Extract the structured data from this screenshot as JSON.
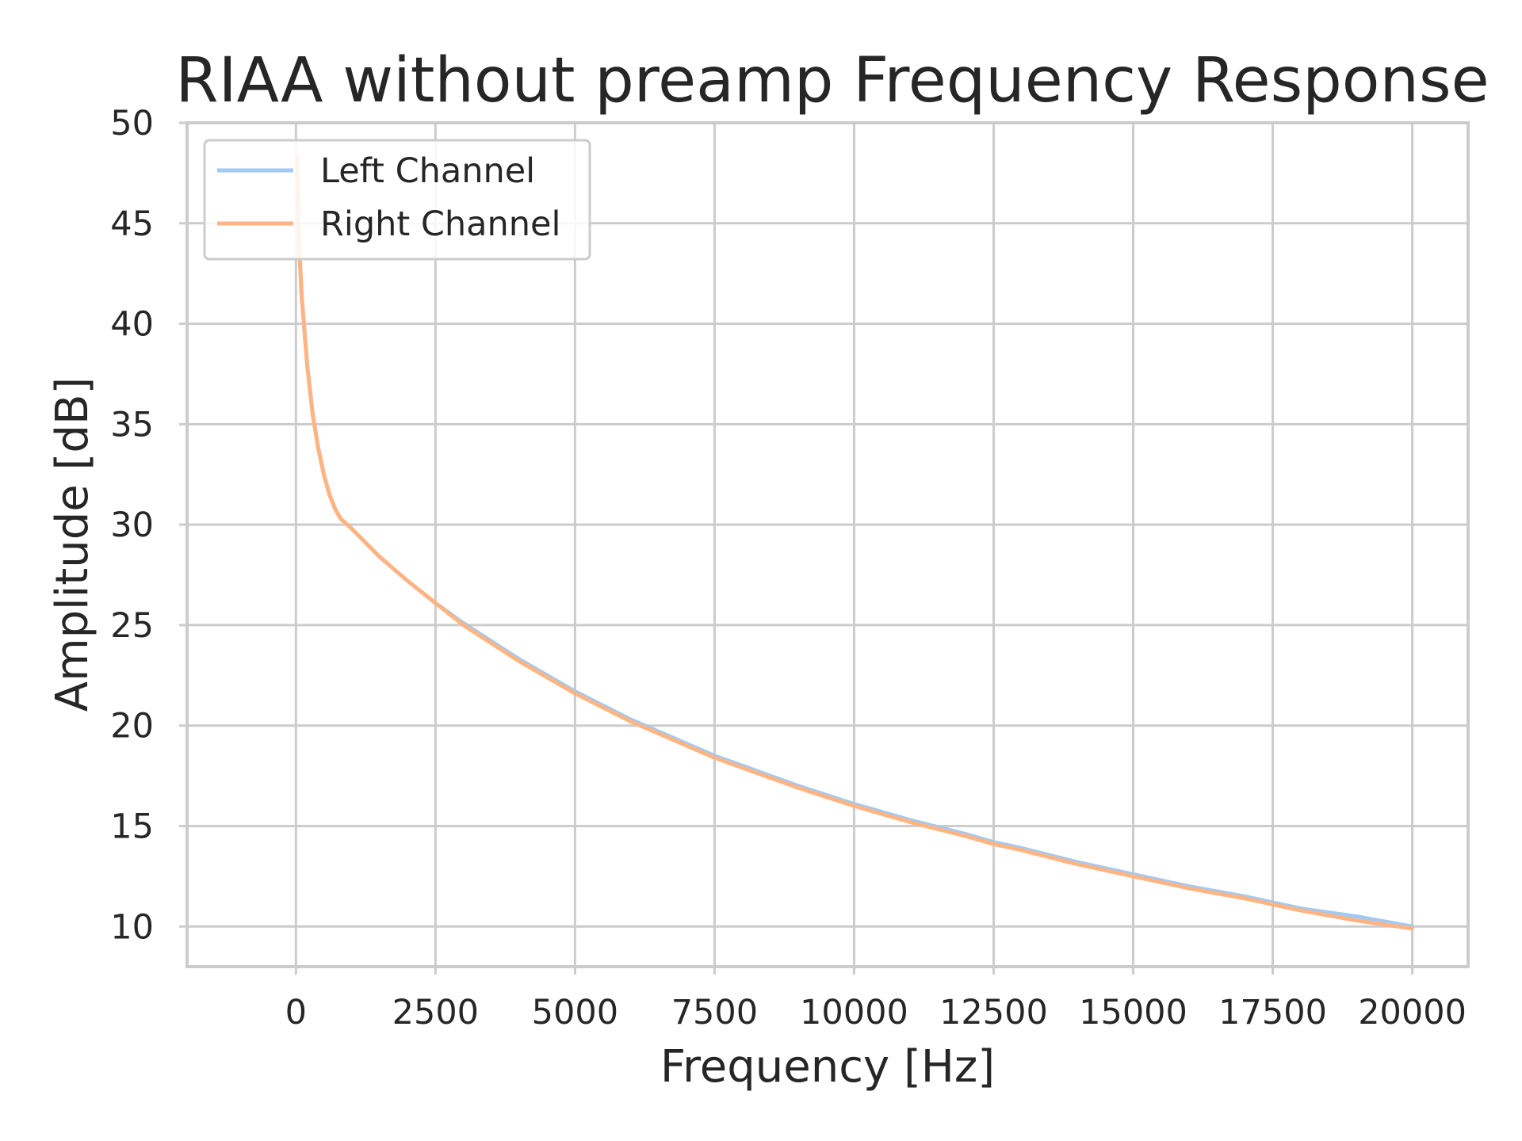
{
  "chart_data": {
    "type": "line",
    "title": "RIAA without preamp Frequency Response",
    "xlabel": "Frequency [Hz]",
    "ylabel": "Amplitude [dB]",
    "xlim": [
      -1950,
      21000
    ],
    "ylim": [
      8,
      50
    ],
    "xticks": [
      0,
      2500,
      5000,
      7500,
      10000,
      12500,
      15000,
      17500,
      20000
    ],
    "yticks": [
      10,
      15,
      20,
      25,
      30,
      35,
      40,
      45,
      50
    ],
    "grid": true,
    "legend_position": "top-left",
    "series": [
      {
        "name": "Left Channel",
        "color": "#a1c9f4",
        "x": [
          20,
          50,
          100,
          200,
          300,
          400,
          500,
          600,
          700,
          800,
          1000,
          1500,
          2000,
          2500,
          3000,
          4000,
          5000,
          6000,
          7000,
          7500,
          8000,
          9000,
          10000,
          11000,
          12000,
          12500,
          13000,
          14000,
          15000,
          16000,
          17000,
          17500,
          18000,
          19000,
          20000
        ],
        "y": [
          48.3,
          44.5,
          41.5,
          38.0,
          35.5,
          33.8,
          32.5,
          31.5,
          30.8,
          30.3,
          29.8,
          28.4,
          27.2,
          26.1,
          25.1,
          23.3,
          21.7,
          20.3,
          19.1,
          18.5,
          18.0,
          17.0,
          16.1,
          15.3,
          14.6,
          14.2,
          13.9,
          13.2,
          12.6,
          12.0,
          11.5,
          11.2,
          10.9,
          10.5,
          10.0
        ]
      },
      {
        "name": "Right Channel",
        "color": "#ffb482",
        "x": [
          20,
          50,
          100,
          200,
          300,
          400,
          500,
          600,
          700,
          800,
          1000,
          1500,
          2000,
          2500,
          3000,
          4000,
          5000,
          6000,
          7000,
          7500,
          8000,
          9000,
          10000,
          11000,
          12000,
          12500,
          13000,
          14000,
          15000,
          16000,
          17000,
          17500,
          18000,
          19000,
          20000
        ],
        "y": [
          48.3,
          44.5,
          41.5,
          38.0,
          35.5,
          33.8,
          32.5,
          31.5,
          30.8,
          30.3,
          29.8,
          28.4,
          27.2,
          26.1,
          25.0,
          23.2,
          21.6,
          20.2,
          19.0,
          18.4,
          17.9,
          16.9,
          16.0,
          15.2,
          14.5,
          14.1,
          13.8,
          13.1,
          12.5,
          11.9,
          11.4,
          11.1,
          10.8,
          10.3,
          9.9
        ]
      }
    ]
  }
}
